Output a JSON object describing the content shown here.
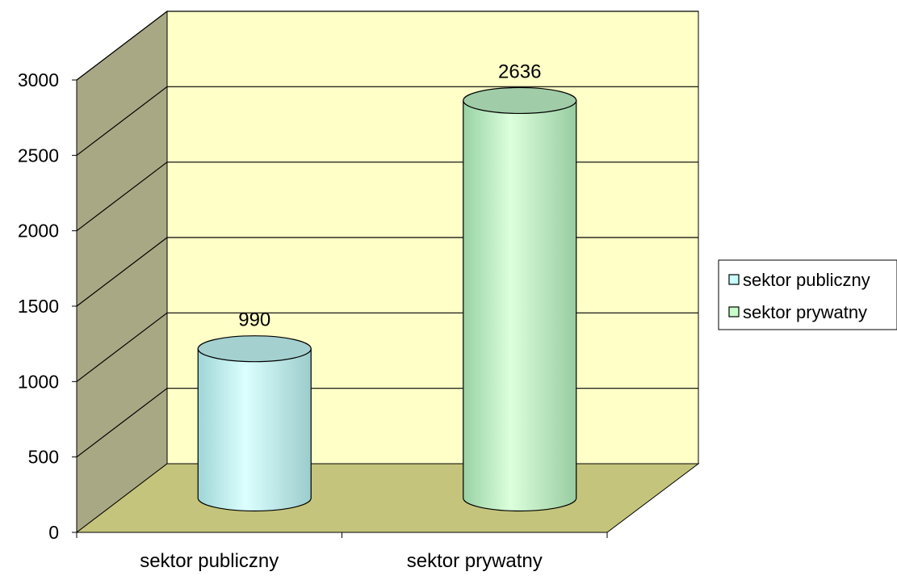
{
  "chart_data": {
    "type": "bar",
    "bar_shape": "cylinder",
    "categories": [
      "sektor publiczny",
      "sektor prywatny"
    ],
    "values": [
      990,
      2636
    ],
    "ylim": [
      0,
      3000
    ],
    "yticks": [
      "0",
      "500",
      "1000",
      "1500",
      "2000",
      "2500",
      "3000"
    ],
    "data_labels": [
      "990",
      "2636"
    ],
    "grid": true,
    "legend": {
      "placement": "right",
      "entries": [
        "sektor publiczny",
        "sektor prywatny"
      ]
    },
    "colors": {
      "back_wall": "#ffffc8",
      "side_wall": "#a8a884",
      "floor": "#c4c47c",
      "series": [
        "#c8ffff",
        "#c8ffc8"
      ],
      "series_top": [
        "#a4d0d0",
        "#a0cca8"
      ]
    }
  }
}
